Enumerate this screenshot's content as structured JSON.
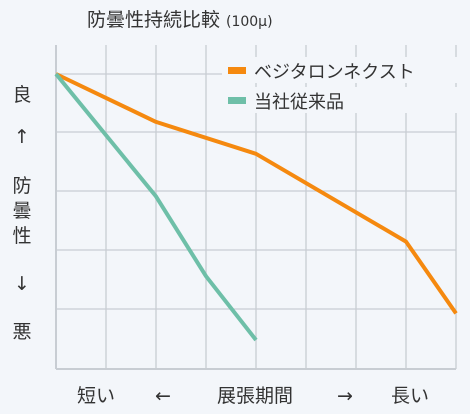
{
  "chart_data": {
    "type": "line",
    "title": "防曇性持続比較",
    "title_unit": "(100μ)",
    "ylabel_top": "良",
    "ylabel_arrow_up": "↑",
    "ylabel_mid": [
      "防",
      "曇",
      "性"
    ],
    "ylabel_arrow_down": "↓",
    "ylabel_bottom": "悪",
    "x_label_left": "短い",
    "x_arrow_left": "←",
    "x_label_center": "展張期間",
    "x_arrow_right": "→",
    "x_label_right": "長い",
    "xlim": [
      0,
      8
    ],
    "ylim": [
      0,
      5
    ],
    "grid": true,
    "legend_position": "top-right",
    "series": [
      {
        "name": "ベジタロンネクスト",
        "color": "#f5890f",
        "points": [
          [
            0,
            5.0
          ],
          [
            2,
            4.1
          ],
          [
            4,
            3.5
          ],
          [
            7,
            1.85
          ],
          [
            8,
            0.5
          ]
        ]
      },
      {
        "name": "当社従来品",
        "color": "#6ebfa8",
        "points": [
          [
            0,
            5.0
          ],
          [
            2,
            2.7
          ],
          [
            3,
            1.2
          ],
          [
            4,
            0.0
          ]
        ]
      }
    ]
  },
  "colors": {
    "background": "#f3f6fa",
    "grid": "#c8cdd3",
    "text": "#333333"
  }
}
